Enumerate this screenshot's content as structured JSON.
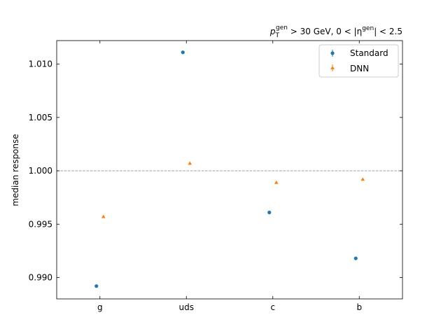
{
  "chart_data": {
    "type": "scatter",
    "categories": [
      "g",
      "uds",
      "c",
      "b"
    ],
    "series": [
      {
        "name": "Standard",
        "values": [
          0.9892,
          1.0111,
          0.9961,
          0.9918
        ],
        "color": "#1f77b4",
        "marker": "circle"
      },
      {
        "name": "DNN",
        "values": [
          0.9957,
          1.0007,
          0.9989,
          0.9992
        ],
        "color": "#ff7f0e",
        "marker": "triangle"
      }
    ],
    "title": {
      "var": "p",
      "sub": "T",
      "sup1": "gen",
      "mid": " > 30 GeV, 0 < |η",
      "sup2": "gen",
      "tail": "| < 2.5"
    },
    "xlabel": "",
    "ylabel": "median response",
    "ylim": [
      0.988,
      1.0122
    ],
    "yticks": [
      0.99,
      0.995,
      1.0,
      1.005,
      1.01
    ],
    "ytick_labels": [
      "0.990",
      "0.995",
      "1.000",
      "1.005",
      "1.010"
    ],
    "reference_line": {
      "y": 1.0,
      "style": "dashed",
      "color": "#808080"
    },
    "legend_position": "top-right",
    "grid": false
  }
}
